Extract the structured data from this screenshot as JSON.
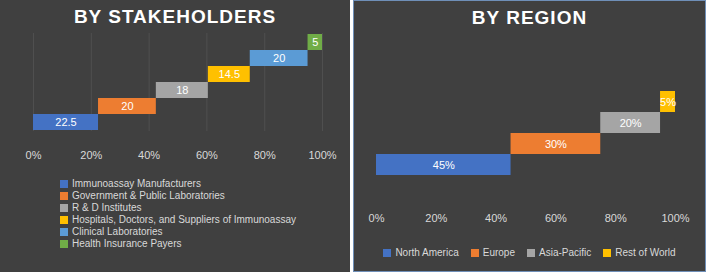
{
  "chart_data": [
    {
      "type": "bar",
      "orientation": "horizontal",
      "title": "BY STAKEHOLDERS",
      "categories": [
        "Immunoassay Manufacturers",
        "Government & Public Laboratories",
        "R & D Institutes",
        "Hospitals, Doctors, and Suppliers of Immunoassay",
        "Clinical Laboratories",
        "Health Insurance Payers"
      ],
      "values": [
        22.5,
        20,
        18,
        14.5,
        20,
        5
      ],
      "colors": [
        "#4472c4",
        "#ed7d31",
        "#a5a5a5",
        "#ffc000",
        "#5b9bd5",
        "#70ad47"
      ],
      "xlim": [
        0,
        100
      ],
      "xticks": [
        {
          "value": 0,
          "label": "0%"
        },
        {
          "value": 20,
          "label": "20%"
        },
        {
          "value": 40,
          "label": "40%"
        },
        {
          "value": 60,
          "label": "60%"
        },
        {
          "value": 80,
          "label": "80%"
        },
        {
          "value": 100,
          "label": "100%"
        }
      ],
      "grid": true,
      "data_labels": true,
      "tick_labels": "x",
      "legend": "bottom"
    },
    {
      "type": "bar",
      "orientation": "horizontal",
      "title": "BY REGION",
      "categories": [
        "North America",
        "Europe",
        "Asia-Pacific",
        "Rest of World"
      ],
      "values": [
        45,
        30,
        20,
        5
      ],
      "value_labels": [
        "45%",
        "30%",
        "20%",
        "5%"
      ],
      "colors": [
        "#4472c4",
        "#ed7d31",
        "#a5a5a5",
        "#ffc000"
      ],
      "xlim": [
        0,
        100
      ],
      "xticks": [
        {
          "value": 0,
          "label": "0%"
        },
        {
          "value": 20,
          "label": "20%"
        },
        {
          "value": 40,
          "label": "40%"
        },
        {
          "value": 60,
          "label": "60%"
        },
        {
          "value": 80,
          "label": "80%"
        },
        {
          "value": 100,
          "label": "100%"
        }
      ],
      "grid": false,
      "data_labels": true,
      "tick_labels": "x",
      "legend": "bottom"
    }
  ]
}
